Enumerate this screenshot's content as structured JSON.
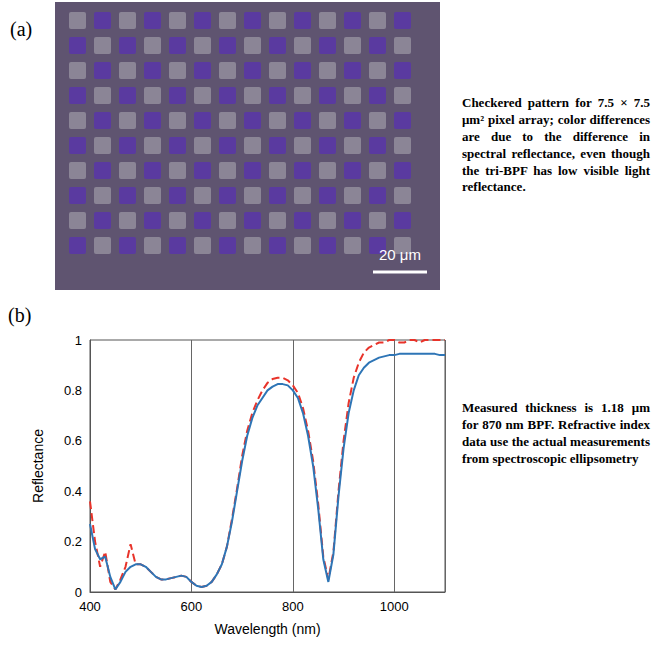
{
  "panel_a": {
    "letter": "(a)",
    "scale_bar": "20 μm",
    "caption": "Checkered pattern for 7.5 × 7.5 μm² pixel array; color differences are due to the difference in spectral reflectance, even though the tri-BPF has low visible light reflectance."
  },
  "panel_b": {
    "letter": "(b)",
    "caption": "Measured thickness is 1.18 μm for 870 nm BPF. Refractive index data use the actual measurements from spectroscopic ellipsometry"
  },
  "chart_data": {
    "type": "line",
    "x_label": "Wavelength (nm)",
    "y_label": "Reflectance",
    "xlim": [
      400,
      1100
    ],
    "xticks": [
      400,
      600,
      800,
      1000
    ],
    "ylim": [
      0,
      1
    ],
    "yticks": [
      0,
      0.2,
      0.4,
      0.6,
      0.8,
      1
    ],
    "grid": "x",
    "x": [
      400,
      410,
      420,
      430,
      440,
      450,
      460,
      470,
      480,
      490,
      500,
      510,
      520,
      530,
      540,
      550,
      560,
      570,
      580,
      590,
      600,
      610,
      620,
      630,
      640,
      650,
      660,
      670,
      680,
      690,
      700,
      710,
      720,
      730,
      740,
      750,
      760,
      770,
      780,
      790,
      800,
      810,
      820,
      830,
      840,
      850,
      860,
      870,
      880,
      890,
      900,
      910,
      920,
      930,
      940,
      950,
      960,
      970,
      980,
      990,
      1000,
      1010,
      1020,
      1030,
      1040,
      1050,
      1060,
      1070,
      1080,
      1090,
      1100
    ],
    "series": [
      {
        "color": "#e8332a",
        "line_style": "dashed",
        "values": [
          0.36,
          0.2,
          0.1,
          0.16,
          0.04,
          0.01,
          0.05,
          0.1,
          0.19,
          0.11,
          0.11,
          0.1,
          0.08,
          0.06,
          0.05,
          0.05,
          0.055,
          0.06,
          0.065,
          0.06,
          0.04,
          0.025,
          0.02,
          0.025,
          0.04,
          0.07,
          0.11,
          0.18,
          0.29,
          0.41,
          0.54,
          0.64,
          0.71,
          0.76,
          0.8,
          0.83,
          0.845,
          0.85,
          0.85,
          0.84,
          0.82,
          0.79,
          0.73,
          0.64,
          0.52,
          0.35,
          0.14,
          0.05,
          0.16,
          0.4,
          0.6,
          0.75,
          0.85,
          0.91,
          0.95,
          0.97,
          0.98,
          0.99,
          0.99,
          1,
          1,
          0.99,
          0.99,
          1,
          1,
          0.99,
          1,
          1,
          1,
          1,
          1
        ]
      },
      {
        "color": "#2e75b6",
        "line_style": "solid",
        "values": [
          0.27,
          0.17,
          0.13,
          0.14,
          0.06,
          0.01,
          0.04,
          0.08,
          0.1,
          0.11,
          0.11,
          0.1,
          0.08,
          0.06,
          0.05,
          0.05,
          0.055,
          0.06,
          0.065,
          0.06,
          0.04,
          0.025,
          0.02,
          0.025,
          0.04,
          0.07,
          0.11,
          0.18,
          0.28,
          0.4,
          0.52,
          0.62,
          0.69,
          0.74,
          0.77,
          0.8,
          0.815,
          0.825,
          0.825,
          0.82,
          0.8,
          0.77,
          0.71,
          0.62,
          0.5,
          0.33,
          0.13,
          0.04,
          0.15,
          0.38,
          0.57,
          0.71,
          0.8,
          0.86,
          0.89,
          0.91,
          0.92,
          0.93,
          0.935,
          0.94,
          0.94,
          0.945,
          0.945,
          0.945,
          0.945,
          0.945,
          0.945,
          0.945,
          0.945,
          0.94,
          0.94
        ]
      }
    ]
  }
}
